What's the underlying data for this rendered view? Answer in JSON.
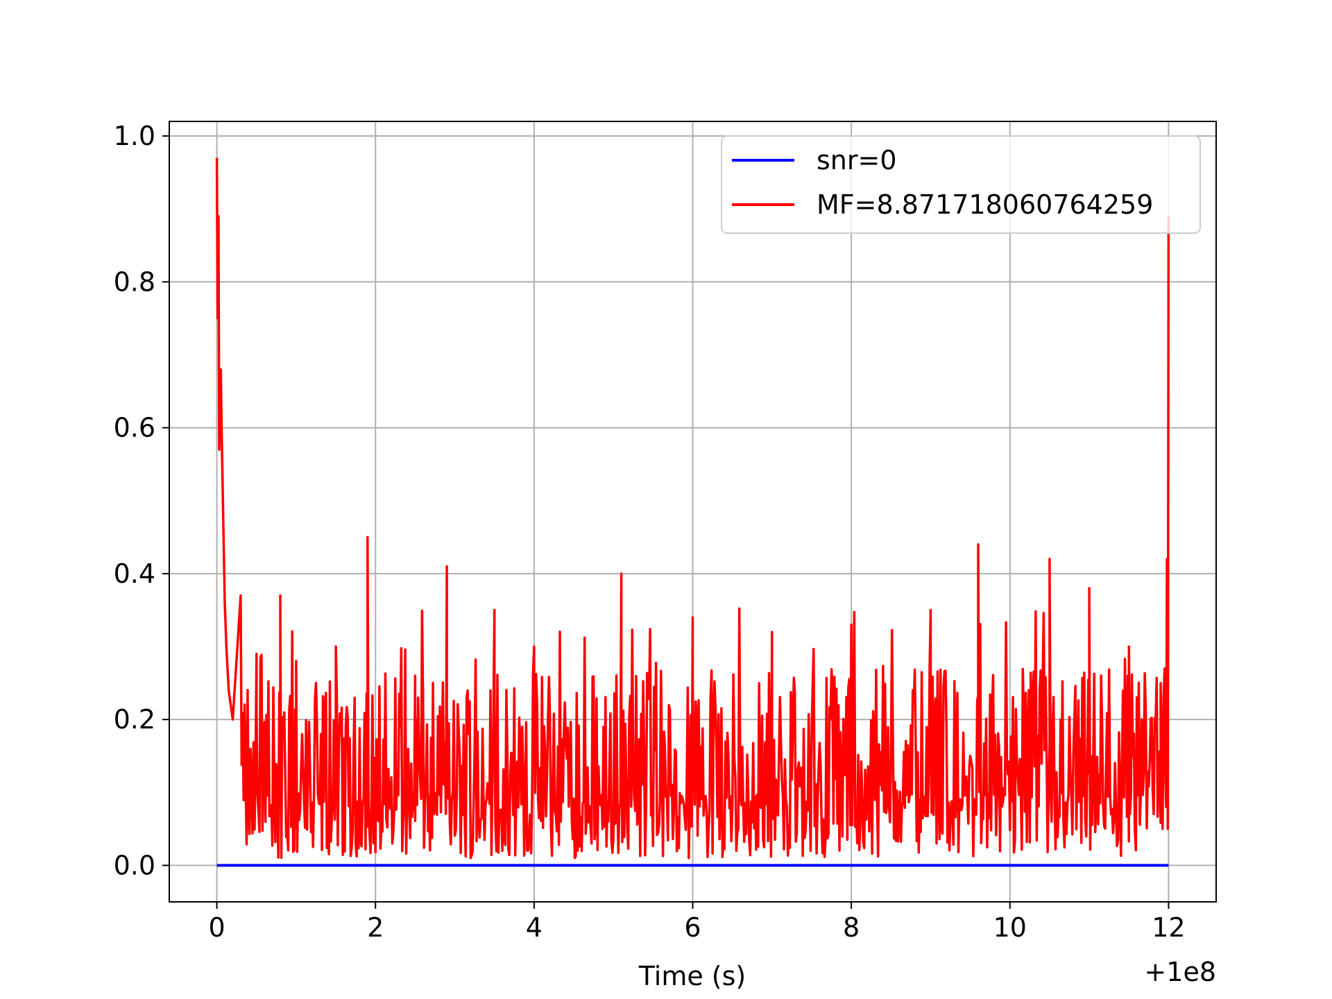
{
  "chart_data": {
    "type": "line",
    "title": "",
    "xlabel": "Time (s)",
    "ylabel": "",
    "x_offset_label": "+1e8",
    "xlim": [
      -0.6,
      12.6
    ],
    "ylim": [
      -0.05,
      1.02
    ],
    "grid": true,
    "legend_position": "upper right",
    "x_ticks": [
      0,
      2,
      4,
      6,
      8,
      10,
      12
    ],
    "x_tick_labels": [
      "0",
      "2",
      "4",
      "6",
      "8",
      "10",
      "12"
    ],
    "y_ticks": [
      0.0,
      0.2,
      0.4,
      0.6,
      0.8,
      1.0
    ],
    "y_tick_labels": [
      "0.0",
      "0.2",
      "0.4",
      "0.6",
      "0.8",
      "1.0"
    ],
    "series": [
      {
        "name": "snr=0",
        "color": "#0000ff",
        "x": [
          0,
          12
        ],
        "values": [
          0,
          0
        ]
      },
      {
        "name": "MF=8.871718060764259",
        "color": "#ff0000",
        "description_points_x": [
          0,
          0.01,
          0.02,
          0.03,
          0.05,
          0.06,
          0.08,
          0.1,
          0.12,
          0.15,
          0.2,
          0.3,
          0.5,
          0.8,
          1.0,
          1.5,
          1.9,
          2.5,
          2.9,
          3.5,
          4.0,
          5.1,
          6.0,
          7.0,
          8.0,
          9.0,
          9.6,
          10.5,
          11.0,
          11.5,
          11.9,
          11.98,
          12.0
        ],
        "values": [
          0.97,
          0.75,
          0.89,
          0.57,
          0.68,
          0.6,
          0.48,
          0.36,
          0.3,
          0.24,
          0.2,
          0.37,
          0.29,
          0.37,
          0.28,
          0.3,
          0.45,
          0.26,
          0.41,
          0.35,
          0.3,
          0.4,
          0.34,
          0.32,
          0.33,
          0.35,
          0.44,
          0.42,
          0.38,
          0.3,
          0.25,
          0.42,
          0.89
        ],
        "noise_band": [
          0.0,
          0.27
        ]
      }
    ]
  }
}
